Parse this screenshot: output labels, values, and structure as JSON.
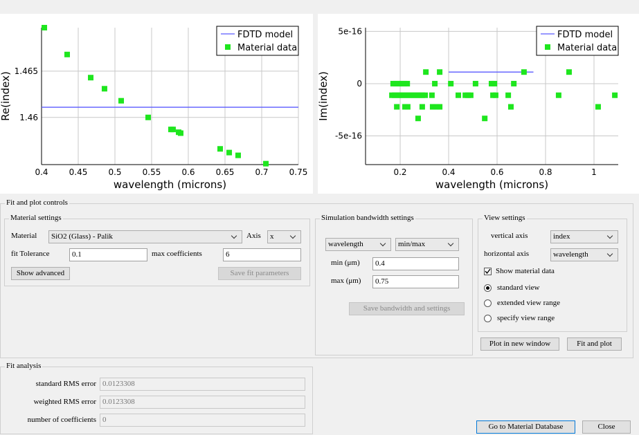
{
  "chart_data": [
    {
      "type": "scatter",
      "xlabel": "wavelength (microns)",
      "ylabel": "Re(index)",
      "xlim": [
        0.4,
        0.75
      ],
      "xticks": [
        0.4,
        0.45,
        0.5,
        0.55,
        0.6,
        0.65,
        0.7,
        0.75
      ],
      "ylim": [
        1.4549,
        1.4697
      ],
      "yticks": [
        1.46,
        1.465
      ],
      "grid": true,
      "legend": "upper right",
      "series": [
        {
          "name": "FDTD model",
          "color": "#5a5aff",
          "mode": "line",
          "x": [
            0.4,
            0.75
          ],
          "values": [
            1.4611,
            1.4611
          ]
        },
        {
          "name": "Material data",
          "color": "#1ee61e",
          "mode": "marker",
          "x": [
            0.4038,
            0.4349,
            0.467,
            0.4858,
            0.5085,
            0.5453,
            0.5764,
            0.5792,
            0.5868,
            0.5896,
            0.6434,
            0.6557,
            0.6679,
            0.7057
          ],
          "values": [
            1.4697,
            1.4668,
            1.4643,
            1.4631,
            1.4618,
            1.46,
            1.4587,
            1.4587,
            1.4584,
            1.4583,
            1.4566,
            1.4562,
            1.4559,
            1.455
          ]
        }
      ]
    },
    {
      "type": "scatter",
      "xlabel": "wavelength (microns)",
      "ylabel": "Im(index)",
      "xlim": [
        0.057,
        1.1
      ],
      "xticks": [
        0.2,
        0.4,
        0.6,
        0.8,
        1
      ],
      "ylim": [
        -7.75e-16,
        5.36e-16
      ],
      "yticks": [
        {
          "value": -5e-16,
          "label": "-5e-16"
        },
        0,
        {
          "value": 5e-16,
          "label": "5e-16"
        }
      ],
      "grid": true,
      "legend": "upper right",
      "series": [
        {
          "name": "FDTD model",
          "color": "#5a5aff",
          "mode": "line",
          "x": [
            0.4,
            0.75
          ],
          "values": [
            1.11e-16,
            1.11e-16
          ]
        },
        {
          "name": "Material data",
          "color": "#1ee61e",
          "mode": "marker",
          "x": [
            0.171,
            0.183,
            0.194,
            0.206,
            0.217,
            0.229,
            0.343,
            0.409,
            0.511,
            0.577,
            0.589,
            0.669,
            0.166,
            0.177,
            0.189,
            0.2,
            0.211,
            0.223,
            0.234,
            0.246,
            0.257,
            0.269,
            0.28,
            0.291,
            0.303,
            0.331,
            0.44,
            0.469,
            0.48,
            0.491,
            0.583,
            0.594,
            0.646,
            0.854,
            1.086,
            0.186,
            0.22,
            0.231,
            0.291,
            0.334,
            0.349,
            0.363,
            0.657,
            1.017,
            0.306,
            0.363,
            0.711,
            0.897,
            0.274,
            0.549
          ],
          "values": [
            0,
            0,
            0,
            0,
            0,
            0,
            0,
            0,
            0,
            0,
            0,
            0,
            -1.11e-16,
            -1.11e-16,
            -1.11e-16,
            -1.11e-16,
            -1.11e-16,
            -1.11e-16,
            -1.11e-16,
            -1.11e-16,
            -1.11e-16,
            -1.11e-16,
            -1.11e-16,
            -1.11e-16,
            -1.11e-16,
            -1.11e-16,
            -1.11e-16,
            -1.11e-16,
            -1.11e-16,
            -1.11e-16,
            -1.11e-16,
            -1.11e-16,
            -1.11e-16,
            -1.11e-16,
            -1.11e-16,
            -2.22e-16,
            -2.22e-16,
            -2.22e-16,
            -2.22e-16,
            -2.22e-16,
            -2.22e-16,
            -2.22e-16,
            -2.22e-16,
            -2.22e-16,
            1.11e-16,
            1.11e-16,
            1.11e-16,
            1.11e-16,
            -3.33e-16,
            -3.33e-16
          ]
        }
      ]
    }
  ],
  "controls": {
    "title": "Fit and plot controls",
    "material": {
      "title": "Material settings",
      "material_label": "Material",
      "material_value": "SiO2 (Glass) - Palik",
      "axis_label": "Axis",
      "axis_value": "x",
      "tolerance_label": "fit Tolerance",
      "tolerance_value": "0.1",
      "coefficients_label": "max coefficients",
      "coefficients_value": "6",
      "show_advanced": "Show advanced",
      "save_fit": "Save fit parameters"
    },
    "bandwidth": {
      "title": "Simulation bandwidth settings",
      "mode": "wavelength",
      "range": "min/max",
      "min_label": "min (μm)",
      "min_value": "0.4",
      "max_label": "max (μm)",
      "max_value": "0.75",
      "save": "Save bandwidth and settings"
    },
    "view": {
      "title": "View settings",
      "vertical_label": "vertical axis",
      "vertical_value": "index",
      "horizontal_label": "horizontal axis",
      "horizontal_value": "wavelength",
      "show_material": "Show material data",
      "options": [
        "standard view",
        "extended view range",
        "specify view range"
      ],
      "plot_new": "Plot in new window",
      "fit_plot": "Fit and plot"
    }
  },
  "fit_analysis": {
    "title": "Fit analysis",
    "rows": [
      {
        "label": "standard RMS error",
        "value": "0.0123308"
      },
      {
        "label": "weighted RMS error",
        "value": "0.0123308"
      },
      {
        "label": "number of coefficients",
        "value": "0"
      }
    ]
  },
  "buttons": {
    "database": "Go to Material Database",
    "close": "Close"
  }
}
